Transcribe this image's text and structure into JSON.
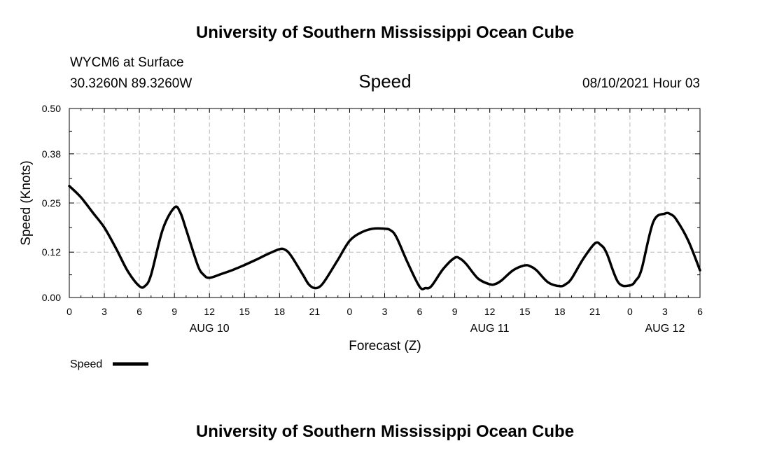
{
  "header": {
    "title_top": "University of Southern Mississippi Ocean Cube",
    "title_bottom": "University of Southern Mississippi Ocean Cube",
    "station": "WYCM6 at Surface",
    "location": "30.3260N  89.3260W",
    "variable": "Speed",
    "timestamp": "08/10/2021 Hour 03"
  },
  "chart_data": {
    "type": "line",
    "title": "Speed",
    "xlabel": "Forecast (Z)",
    "ylabel": "Speed (Knots)",
    "ylim": [
      0,
      0.5
    ],
    "xlim": [
      0,
      54
    ],
    "yticks": [
      0.0,
      0.12,
      0.25,
      0.38,
      0.5
    ],
    "ytick_labels": [
      "0.00",
      "0.12",
      "0.25",
      "0.38",
      "0.50"
    ],
    "xticks": [
      0,
      3,
      6,
      9,
      12,
      15,
      18,
      21,
      24,
      27,
      30,
      33,
      36,
      39,
      42,
      45,
      48,
      51,
      54
    ],
    "xtick_labels": [
      "0",
      "3",
      "6",
      "9",
      "12",
      "15",
      "18",
      "21",
      "0",
      "3",
      "6",
      "9",
      "12",
      "15",
      "18",
      "21",
      "0",
      "3",
      "6"
    ],
    "day_labels": [
      {
        "hour": 12,
        "label": "AUG 10"
      },
      {
        "hour": 36,
        "label": "AUG 11"
      },
      {
        "hour": 51,
        "label": "AUG 12"
      }
    ],
    "grid": true,
    "legend_position": "bottom-left",
    "line_color": "#000000",
    "series": [
      {
        "name": "Speed",
        "x": [
          0,
          1,
          2,
          3,
          4,
          5,
          6,
          6.5,
          7,
          8,
          9,
          9.5,
          10,
          11,
          11.5,
          12,
          13,
          14,
          15,
          16,
          17,
          18,
          18.5,
          19,
          20,
          20.5,
          21,
          21.5,
          22,
          23,
          24,
          25,
          26,
          27,
          27.5,
          28,
          29,
          30,
          30.5,
          31,
          32,
          33,
          33.5,
          34,
          35,
          36,
          36.5,
          37,
          38,
          39,
          39.5,
          40,
          41,
          42,
          42.5,
          43,
          44,
          45,
          45.5,
          46,
          47,
          48,
          48.5,
          49,
          50,
          51,
          51.5,
          52,
          53,
          54
        ],
        "y": [
          0.295,
          0.265,
          0.225,
          0.185,
          0.13,
          0.07,
          0.03,
          0.031,
          0.06,
          0.18,
          0.238,
          0.225,
          0.18,
          0.085,
          0.06,
          0.052,
          0.062,
          0.073,
          0.086,
          0.1,
          0.115,
          0.128,
          0.126,
          0.11,
          0.06,
          0.035,
          0.025,
          0.03,
          0.05,
          0.1,
          0.15,
          0.172,
          0.182,
          0.182,
          0.178,
          0.16,
          0.09,
          0.028,
          0.025,
          0.03,
          0.075,
          0.105,
          0.102,
          0.088,
          0.05,
          0.035,
          0.036,
          0.045,
          0.072,
          0.085,
          0.082,
          0.072,
          0.04,
          0.03,
          0.035,
          0.05,
          0.102,
          0.143,
          0.139,
          0.118,
          0.04,
          0.032,
          0.045,
          0.075,
          0.2,
          0.222,
          0.22,
          0.205,
          0.15,
          0.072
        ]
      }
    ]
  },
  "legend": {
    "label": "Speed"
  }
}
